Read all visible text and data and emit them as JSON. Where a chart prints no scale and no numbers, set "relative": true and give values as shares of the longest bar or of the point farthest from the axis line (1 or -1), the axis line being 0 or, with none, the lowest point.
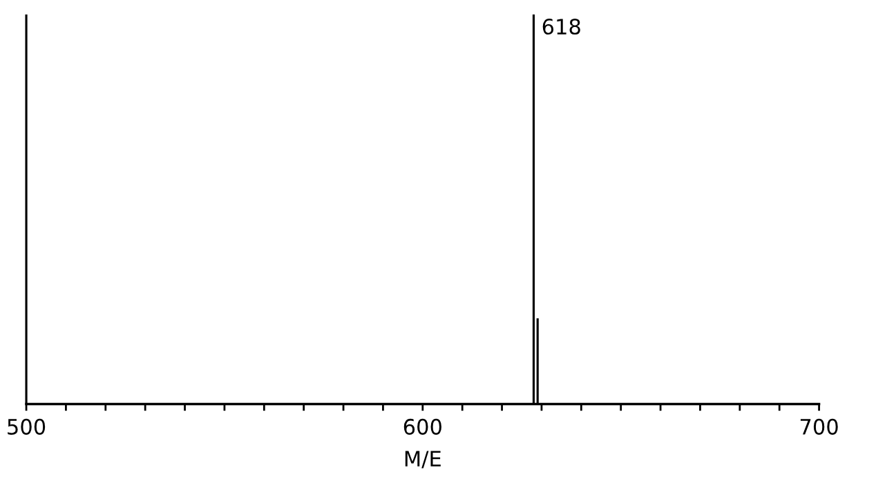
{
  "chart_data": {
    "type": "bar",
    "relative": true,
    "xlabel": "M/E",
    "x": [
      500,
      628,
      629
    ],
    "values": [
      1,
      1,
      0.22
    ],
    "color": "#000000",
    "xlim": [
      500,
      700
    ],
    "xticks": [
      500,
      {
        "value": 510,
        "label": null
      },
      {
        "value": 520,
        "label": null
      },
      {
        "value": 530,
        "label": null
      },
      {
        "value": 540,
        "label": null
      },
      {
        "value": 550,
        "label": null
      },
      {
        "value": 560,
        "label": null
      },
      {
        "value": 570,
        "label": null
      },
      {
        "value": 580,
        "label": null
      },
      {
        "value": 590,
        "label": null
      },
      600,
      {
        "value": 610,
        "label": null
      },
      {
        "value": 620,
        "label": null
      },
      {
        "value": 630,
        "label": null
      },
      {
        "value": 640,
        "label": null
      },
      {
        "value": 650,
        "label": null
      },
      {
        "value": 660,
        "label": null
      },
      {
        "value": 670,
        "label": null
      },
      {
        "value": 680,
        "label": null
      },
      {
        "value": 690,
        "label": null
      },
      700
    ],
    "annotations": [
      {
        "text": "618",
        "x": 628,
        "y": 1
      }
    ],
    "grid": false,
    "legend": false
  }
}
